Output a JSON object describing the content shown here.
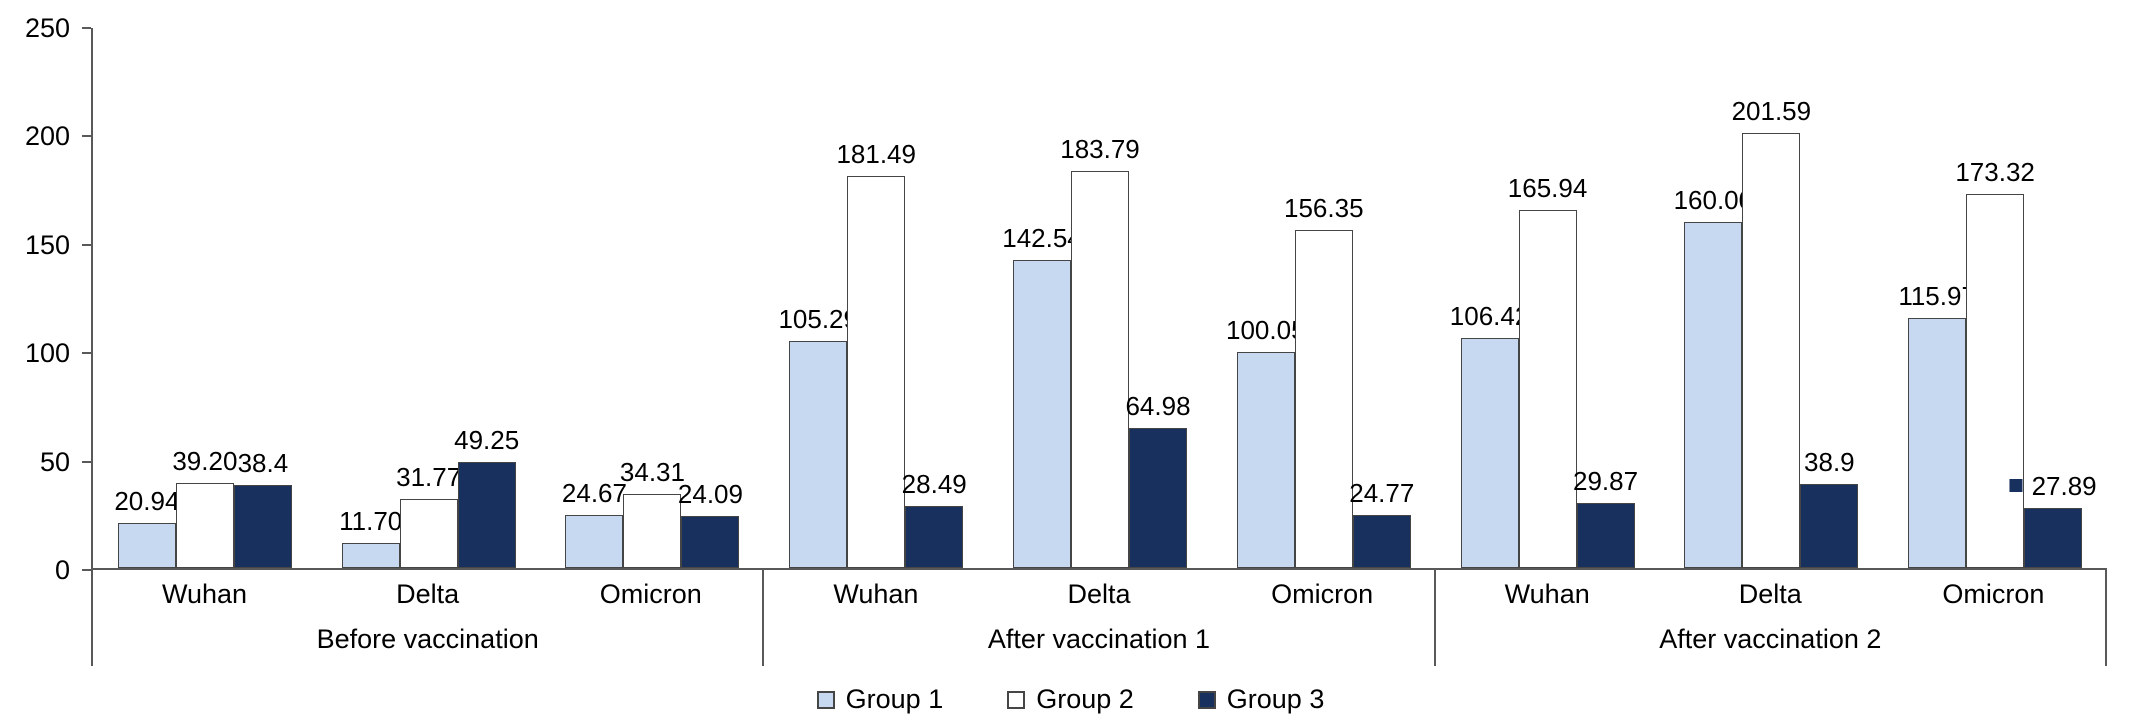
{
  "chart_data": {
    "type": "bar",
    "title": "",
    "xlabel": "",
    "ylabel": "",
    "background": "#ffffff",
    "axis_color": "#595959",
    "bar_border_color": "#454545",
    "y_axis": {
      "min": 0,
      "max": 250,
      "tick_interval": 50,
      "ticks": [
        {
          "value": 250,
          "label": "250"
        },
        {
          "value": 200,
          "label": "200"
        },
        {
          "value": 150,
          "label": "150"
        },
        {
          "value": 100,
          "label": "100"
        },
        {
          "value": 50,
          "label": "50"
        },
        {
          "value": 0,
          "label": "0"
        }
      ],
      "gridlines": false
    },
    "legend": {
      "position": "bottom-center",
      "entries": [
        "Group 1",
        "Group 2",
        "Group 3"
      ]
    },
    "series": [
      {
        "name": "Group 1",
        "fill": "#C6D9F1"
      },
      {
        "name": "Group 2",
        "fill": "#FFFFFF"
      },
      {
        "name": "Group 3",
        "fill": "#17305E"
      }
    ],
    "groups": [
      {
        "label": "Before vaccination",
        "categories": [
          {
            "label": "Wuhan",
            "bars": [
              {
                "value": 20.94,
                "label": "20.94"
              },
              {
                "value": 39.2,
                "label": "39.20"
              },
              {
                "value": 38.4,
                "label": "38.4"
              }
            ]
          },
          {
            "label": "Delta",
            "bars": [
              {
                "value": 11.7,
                "label": "11.70"
              },
              {
                "value": 31.77,
                "label": "31.77"
              },
              {
                "value": 49.25,
                "label": "49.25"
              }
            ]
          },
          {
            "label": "Omicron",
            "bars": [
              {
                "value": 24.67,
                "label": "24.67"
              },
              {
                "value": 34.31,
                "label": "34.31"
              },
              {
                "value": 24.09,
                "label": "24.09"
              }
            ]
          }
        ]
      },
      {
        "label": "After vaccination 1",
        "categories": [
          {
            "label": "Wuhan",
            "bars": [
              {
                "value": 105.29,
                "label": "105.29"
              },
              {
                "value": 181.49,
                "label": "181.49"
              },
              {
                "value": 28.49,
                "label": "28.49"
              }
            ]
          },
          {
            "label": "Delta",
            "bars": [
              {
                "value": 142.54,
                "label": "142.54"
              },
              {
                "value": 183.79,
                "label": "183.79"
              },
              {
                "value": 64.98,
                "label": "64.98"
              }
            ]
          },
          {
            "label": "Omicron",
            "bars": [
              {
                "value": 100.05,
                "label": "100.05"
              },
              {
                "value": 156.35,
                "label": "156.35"
              },
              {
                "value": 24.77,
                "label": "24.77"
              }
            ]
          }
        ]
      },
      {
        "label": "After vaccination 2",
        "categories": [
          {
            "label": "Wuhan",
            "bars": [
              {
                "value": 106.42,
                "label": "106.42"
              },
              {
                "value": 165.94,
                "label": "165.94"
              },
              {
                "value": 29.87,
                "label": "29.87"
              }
            ]
          },
          {
            "label": "Delta",
            "bars": [
              {
                "value": 160.0,
                "label": "160.00"
              },
              {
                "value": 201.59,
                "label": "201.59"
              },
              {
                "value": 38.9,
                "label": "38.9"
              }
            ]
          },
          {
            "label": "Omicron",
            "bars": [
              {
                "value": 115.97,
                "label": "115.97"
              },
              {
                "value": 173.32,
                "label": "173.32"
              },
              {
                "value": 27.89,
                "label": "27.89",
                "marker_before_label": true
              }
            ]
          }
        ]
      }
    ]
  }
}
